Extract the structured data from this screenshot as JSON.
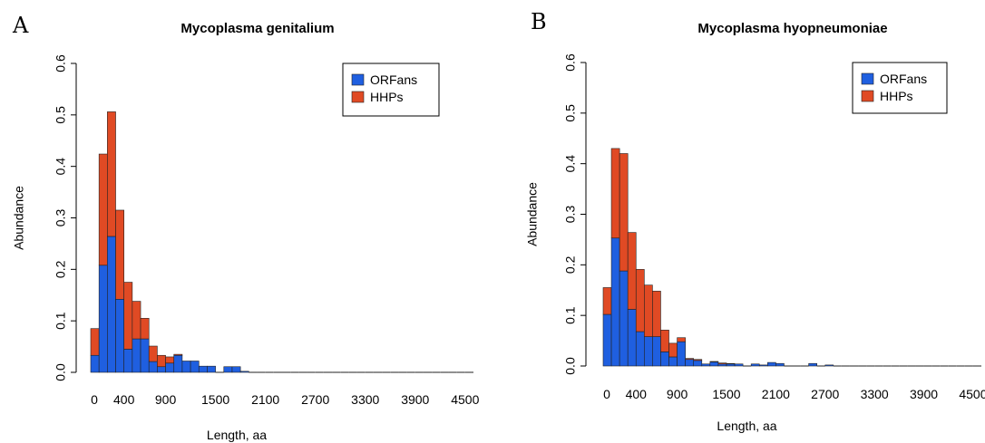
{
  "colors": {
    "orfans": "#1f5fe0",
    "hhps": "#e04a24",
    "bar_stroke": "#222222"
  },
  "chart_data": [
    {
      "type": "bar",
      "stacked": true,
      "panel_label": "A",
      "title": "Mycoplasma genitalium",
      "xlabel": "Length, aa",
      "ylabel": "Abundance",
      "ylim": [
        0,
        0.6
      ],
      "y_ticks": [
        "0.0",
        "0.1",
        "0.2",
        "0.3",
        "0.4",
        "0.5",
        "0.6"
      ],
      "x_ticks": [
        "0",
        "400",
        "900",
        "1500",
        "2100",
        "2700",
        "3300",
        "3900",
        "4500"
      ],
      "bin_width": 100,
      "legend_position": "top-right",
      "series": [
        {
          "name": "ORFans",
          "color_key": "orfans",
          "values": [
            0.033,
            0.208,
            0.264,
            0.142,
            0.045,
            0.065,
            0.065,
            0.021,
            0.011,
            0.018,
            0.033,
            0.022,
            0.022,
            0.012,
            0.012,
            0,
            0.011,
            0.011,
            0.002,
            0,
            0,
            0,
            0,
            0,
            0,
            0,
            0,
            0,
            0,
            0,
            0,
            0,
            0,
            0,
            0,
            0,
            0,
            0,
            0,
            0,
            0,
            0,
            0,
            0,
            0,
            0
          ]
        },
        {
          "name": "HHPs",
          "color_key": "hhps",
          "values": [
            0.052,
            0.216,
            0.242,
            0.173,
            0.13,
            0.073,
            0.04,
            0.03,
            0.022,
            0.012,
            0.002,
            0,
            0,
            0,
            0,
            0,
            0,
            0,
            0,
            0,
            0,
            0,
            0,
            0,
            0,
            0,
            0,
            0,
            0,
            0,
            0,
            0,
            0,
            0,
            0,
            0,
            0,
            0,
            0,
            0,
            0,
            0,
            0,
            0,
            0,
            0
          ]
        }
      ]
    },
    {
      "type": "bar",
      "stacked": true,
      "panel_label": "B",
      "title": "Mycoplasma hyopneumoniae",
      "xlabel": "Length, aa",
      "ylabel": "Abundance",
      "ylim": [
        0,
        0.6
      ],
      "y_ticks": [
        "0.0",
        "0.1",
        "0.2",
        "0.3",
        "0.4",
        "0.5",
        "0.6"
      ],
      "x_ticks": [
        "0",
        "400",
        "900",
        "1500",
        "2100",
        "2700",
        "3300",
        "3900",
        "4500"
      ],
      "bin_width": 100,
      "legend_position": "top-right",
      "series": [
        {
          "name": "ORFans",
          "color_key": "orfans",
          "values": [
            0.102,
            0.253,
            0.188,
            0.112,
            0.068,
            0.058,
            0.058,
            0.028,
            0.018,
            0.048,
            0.013,
            0.011,
            0.004,
            0.008,
            0.004,
            0.004,
            0.004,
            0,
            0.004,
            0.002,
            0.007,
            0.005,
            0,
            0,
            0,
            0.005,
            0,
            0.002,
            0,
            0,
            0,
            0,
            0,
            0,
            0,
            0,
            0,
            0,
            0,
            0,
            0,
            0,
            0,
            0,
            0,
            0
          ]
        },
        {
          "name": "HHPs",
          "color_key": "hhps",
          "values": [
            0.053,
            0.177,
            0.232,
            0.152,
            0.123,
            0.102,
            0.09,
            0.043,
            0.027,
            0.008,
            0.002,
            0.002,
            0,
            0.001,
            0.002,
            0.001,
            0,
            0,
            0,
            0,
            0,
            0,
            0,
            0,
            0,
            0,
            0,
            0,
            0,
            0,
            0,
            0,
            0,
            0,
            0,
            0,
            0,
            0,
            0,
            0,
            0,
            0,
            0,
            0,
            0,
            0
          ]
        }
      ]
    }
  ]
}
